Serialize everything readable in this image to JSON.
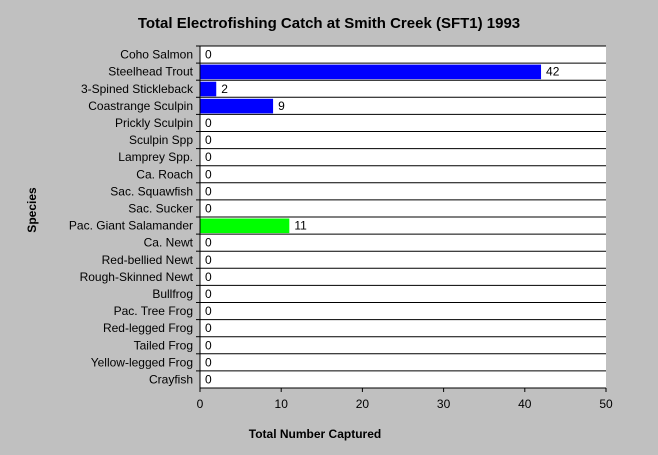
{
  "chart_data": {
    "type": "bar",
    "orientation": "horizontal",
    "title": "Total Electrofishing Catch at Smith Creek (SFT1) 1993",
    "xlabel": "Total Number Captured",
    "ylabel": "Species",
    "xlim": [
      0,
      50
    ],
    "xticks": [
      "0",
      "10",
      "20",
      "30",
      "40",
      "50"
    ],
    "grid": "horizontal",
    "legend": "none",
    "categories": [
      "Coho Salmon",
      "Steelhead Trout",
      "3-Spined Stickleback",
      "Coastrange Sculpin",
      "Prickly Sculpin",
      "Sculpin Spp",
      "Lamprey Spp.",
      "Ca. Roach",
      "Sac. Squawfish",
      "Sac. Sucker",
      "Pac. Giant Salamander",
      "Ca. Newt",
      "Red-bellied Newt",
      "Rough-Skinned Newt",
      "Bullfrog",
      "Pac. Tree Frog",
      "Red-legged Frog",
      "Tailed Frog",
      "Yellow-legged Frog",
      "Crayfish"
    ],
    "values": [
      0,
      42,
      2,
      9,
      0,
      0,
      0,
      0,
      0,
      0,
      11,
      0,
      0,
      0,
      0,
      0,
      0,
      0,
      0,
      0
    ],
    "value_labels": [
      "0",
      "42",
      "2",
      "9",
      "0",
      "0",
      "0",
      "0",
      "0",
      "0",
      "11",
      "0",
      "0",
      "0",
      "0",
      "0",
      "0",
      "0",
      "0",
      "0"
    ],
    "bar_colors": [
      "#0000ff",
      "#0000ff",
      "#0000ff",
      "#0000ff",
      "#0000ff",
      "#0000ff",
      "#0000ff",
      "#0000ff",
      "#0000ff",
      "#0000ff",
      "#00ff00",
      "#0000ff",
      "#0000ff",
      "#0000ff",
      "#0000ff",
      "#0000ff",
      "#0000ff",
      "#0000ff",
      "#0000ff",
      "#0000ff"
    ],
    "colors": {
      "background": "#c0c0c0",
      "plot": "#ffffff",
      "fish": "#0000ff",
      "amphibian": "#00ff00"
    }
  }
}
